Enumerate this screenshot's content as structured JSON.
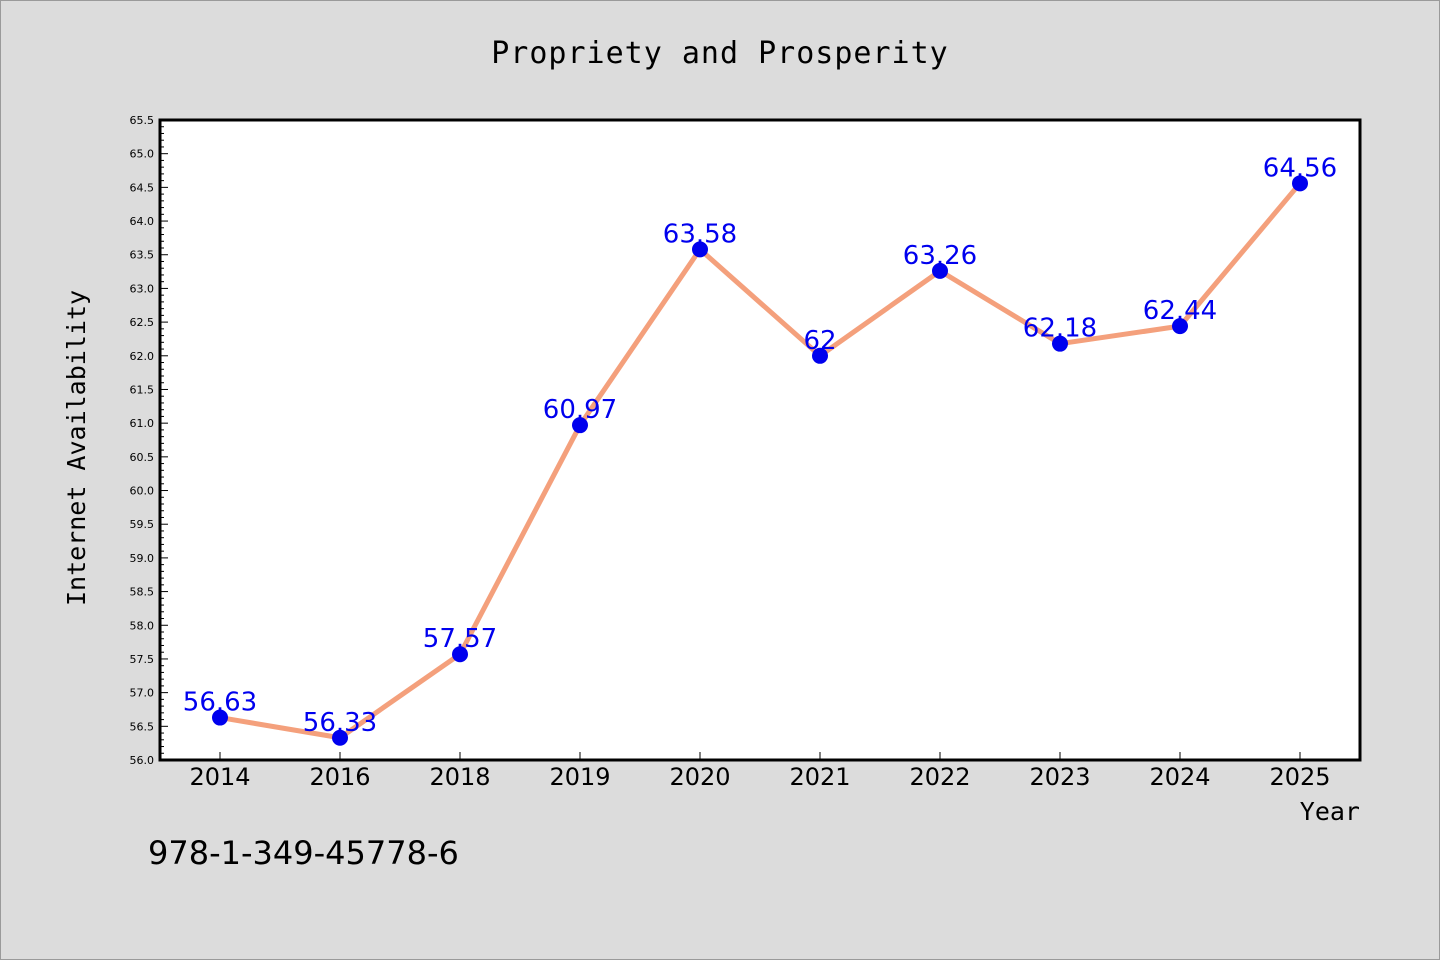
{
  "chart_data": {
    "type": "line",
    "title": "Propriety and Prosperity",
    "xlabel": "Year",
    "ylabel": "Internet Availability",
    "categories": [
      "2014",
      "2016",
      "2018",
      "2019",
      "2020",
      "2021",
      "2022",
      "2023",
      "2024",
      "2025"
    ],
    "series": [
      {
        "values": [
          56.63,
          56.33,
          57.57,
          60.97,
          63.58,
          62,
          63.26,
          62.18,
          62.44,
          64.56
        ],
        "data_labels": [
          "56.63",
          "56.33",
          "57.57",
          "60.97",
          "63.58",
          "62",
          "63.26",
          "62.18",
          "62.44",
          "64.56"
        ]
      }
    ],
    "ylim": [
      56.0,
      65.5
    ],
    "yticks": [
      "56.0",
      "56.5",
      "57.0",
      "57.5",
      "58.0",
      "58.5",
      "59.0",
      "59.5",
      "60.0",
      "60.5",
      "61.0",
      "61.5",
      "62.0",
      "62.5",
      "63.0",
      "63.5",
      "64.0",
      "64.5",
      "65.0",
      "65.5"
    ],
    "grid": false,
    "legend": "none",
    "annotation": "978-1-349-45778-6"
  },
  "colors": {
    "background": "#dcdcdc",
    "plot_area": "#ffffff",
    "line": "#f4a07c",
    "marker": "#0000ee",
    "data_label": "#0000ee"
  }
}
